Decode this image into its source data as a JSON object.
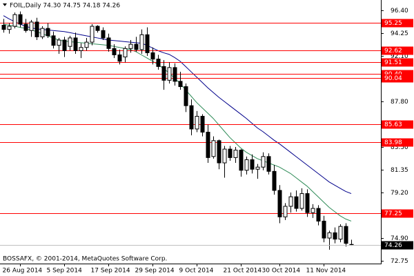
{
  "chart_data": {
    "type": "candlestick",
    "title": "FOIL,Daily  74.30 74.75 74.18 74.26",
    "copyright": "BOSSAFX, © 2001-2014, MetaQuotes Software Corp.",
    "categories": [
      null,
      null,
      null,
      "26 Aug 2014",
      null,
      null,
      null,
      null,
      null,
      null,
      null,
      "5 Sep 2014",
      null,
      null,
      null,
      null,
      null,
      null,
      null,
      "17 Sep 2014",
      null,
      null,
      null,
      null,
      null,
      null,
      null,
      "29 Sep 2014",
      null,
      null,
      null,
      null,
      null,
      null,
      null,
      "9 Oct 2014",
      null,
      null,
      null,
      null,
      null,
      null,
      null,
      "21 Oct 2014",
      null,
      null,
      null,
      null,
      null,
      null,
      "30 Oct 2014",
      null,
      null,
      null,
      null,
      null,
      null,
      null,
      "11 Nov 2014",
      null,
      null,
      null,
      null,
      null
    ],
    "open": [
      95.0,
      94.6,
      94.9,
      96.0,
      95.1,
      94.5,
      95.3,
      93.9,
      94.7,
      94.0,
      93.1,
      93.6,
      93.0,
      93.8,
      92.6,
      92.9,
      93.4,
      94.9,
      94.5,
      93.8,
      92.8,
      92.2,
      92.0,
      92.8,
      93.2,
      92.7,
      94.1,
      92.4,
      91.8,
      91.1,
      89.8,
      91.0,
      89.7,
      89.2,
      87.4,
      85.2,
      86.4,
      84.9,
      82.6,
      84.1,
      82.0,
      83.3,
      82.5,
      83.2,
      81.3,
      82.3,
      81.4,
      81.6,
      82.6,
      81.2,
      79.4,
      76.9,
      77.9,
      78.8,
      77.7,
      79.1,
      77.3,
      77.7,
      76.5,
      74.9,
      75.4,
      74.8,
      76.0,
      74.3
    ],
    "high": [
      95.6,
      95.2,
      96.2,
      96.3,
      95.6,
      95.5,
      95.7,
      94.9,
      95.2,
      94.4,
      93.8,
      93.9,
      94.0,
      94.3,
      93.3,
      93.8,
      95.1,
      95.0,
      94.8,
      94.2,
      93.2,
      92.7,
      93.0,
      93.6,
      93.9,
      94.6,
      94.8,
      92.9,
      92.2,
      91.7,
      91.5,
      91.4,
      90.6,
      89.5,
      88.0,
      86.9,
      86.6,
      85.6,
      84.5,
      84.2,
      83.6,
      83.6,
      83.5,
      83.3,
      82.6,
      82.8,
      81.9,
      83.0,
      82.9,
      81.8,
      79.9,
      78.2,
      79.2,
      79.4,
      79.6,
      79.5,
      78.1,
      78.0,
      77.0,
      75.6,
      75.9,
      76.2,
      76.3,
      74.75
    ],
    "low": [
      94.3,
      94.2,
      94.7,
      94.8,
      94.3,
      93.9,
      93.6,
      93.7,
      93.8,
      92.8,
      92.3,
      92.0,
      92.6,
      92.3,
      91.9,
      92.6,
      93.1,
      94.3,
      93.6,
      92.5,
      91.9,
      91.3,
      91.5,
      92.4,
      92.5,
      92.3,
      92.1,
      91.3,
      90.8,
      88.9,
      89.5,
      89.3,
      88.9,
      86.8,
      84.6,
      84.9,
      84.5,
      82.0,
      82.4,
      81.4,
      80.6,
      82.2,
      82.0,
      80.7,
      80.9,
      81.0,
      80.5,
      81.3,
      80.9,
      79.0,
      76.3,
      76.6,
      77.3,
      77.4,
      77.5,
      76.9,
      76.8,
      76.1,
      74.5,
      73.8,
      74.4,
      74.5,
      74.1,
      74.18
    ],
    "close": [
      94.6,
      94.9,
      96.0,
      95.1,
      94.5,
      95.3,
      93.9,
      94.7,
      94.0,
      93.1,
      93.6,
      92.6,
      93.8,
      92.6,
      92.9,
      93.4,
      94.9,
      94.5,
      93.8,
      92.8,
      92.2,
      91.6,
      92.8,
      93.2,
      92.7,
      94.1,
      92.4,
      91.8,
      91.1,
      89.8,
      91.0,
      89.7,
      89.2,
      87.4,
      85.2,
      86.4,
      84.9,
      82.5,
      84.1,
      82.0,
      83.3,
      82.5,
      83.2,
      81.3,
      82.3,
      81.4,
      81.6,
      82.6,
      81.2,
      79.4,
      76.9,
      77.9,
      78.8,
      77.7,
      79.1,
      77.3,
      77.7,
      76.5,
      74.9,
      75.4,
      74.8,
      76.0,
      74.4,
      74.26
    ],
    "moving_averages": [
      {
        "color": "#00008b",
        "values": [
          95.9,
          95.6,
          95.35,
          95.1,
          94.9,
          94.75,
          94.65,
          94.6,
          94.55,
          94.5,
          94.45,
          94.4,
          94.3,
          94.2,
          94.1,
          94.0,
          93.9,
          93.8,
          93.7,
          93.6,
          93.55,
          93.5,
          93.45,
          93.4,
          93.35,
          93.3,
          93.1,
          92.85,
          92.6,
          92.4,
          92.25,
          91.95,
          91.6,
          91.1,
          90.6,
          90.1,
          89.6,
          89.1,
          88.65,
          88.2,
          87.8,
          87.4,
          87.0,
          86.6,
          86.2,
          85.75,
          85.3,
          84.95,
          84.55,
          84.15,
          83.8,
          83.4,
          83.0,
          82.6,
          82.2,
          81.8,
          81.4,
          81.0,
          80.6,
          80.2,
          79.9,
          79.6,
          79.3,
          79.1
        ]
      },
      {
        "color": "#2e8b57",
        "values": [
          95.1,
          95.0,
          94.9,
          94.8,
          94.7,
          94.55,
          94.4,
          94.2,
          94.0,
          93.8,
          93.6,
          93.5,
          93.45,
          93.4,
          93.35,
          93.3,
          93.25,
          93.2,
          93.15,
          93.1,
          93.0,
          92.9,
          92.8,
          92.7,
          92.5,
          92.2,
          91.9,
          91.6,
          91.3,
          90.9,
          90.5,
          90.0,
          89.5,
          88.9,
          88.3,
          87.7,
          87.2,
          86.7,
          86.2,
          85.6,
          85.0,
          84.4,
          83.9,
          83.4,
          83.0,
          82.7,
          82.4,
          82.2,
          82.0,
          81.8,
          81.6,
          81.3,
          81.0,
          80.6,
          80.2,
          79.8,
          79.3,
          78.8,
          78.3,
          77.8,
          77.4,
          77.0,
          76.7,
          76.5
        ]
      }
    ],
    "levels": {
      "color": "#ff0000",
      "values": [
        95.25,
        92.62,
        91.51,
        {
          "value": 90.4,
          "label": "90.40"
        },
        90.04,
        85.63,
        83.98,
        77.25
      ]
    },
    "last_price": 74.26,
    "ylim": [
      72.49,
      97.38
    ],
    "yticks": [
      {
        "value": 96.4,
        "label": "96.40"
      },
      94.25,
      {
        "value": 92.1,
        "label": "92.10"
      },
      {
        "value": 87.8,
        "label": "87.80"
      },
      {
        "value": 83.5,
        "label": "83.50"
      },
      81.35,
      {
        "value": 79.2,
        "label": "79.20"
      },
      {
        "value": 74.9,
        "label": "74.90"
      },
      72.75
    ]
  }
}
